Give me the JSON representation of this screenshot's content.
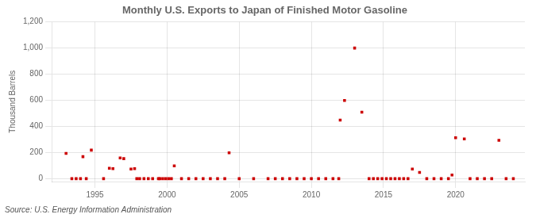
{
  "chart_data": {
    "type": "scatter",
    "title": "Monthly U.S. Exports to Japan of Finished Motor Gasoline",
    "y_label": "Thousand Barrels",
    "annotations": [
      "Source: U.S. Energy Information Administration"
    ],
    "color": "#cc0000",
    "marker": "square",
    "grid": true,
    "xlim": [
      1992.0,
      2024.8
    ],
    "xticks": [
      1995,
      2000,
      2005,
      2010,
      2015,
      2020
    ],
    "ylim": [
      -20,
      1200
    ],
    "yticks": [
      0,
      200,
      400,
      600,
      800,
      {
        "value": 1000,
        "label": "1,000"
      },
      {
        "value": 1200,
        "label": "1,200"
      }
    ],
    "x": [
      1993.0,
      1994.17,
      1994.75,
      1996.0,
      1996.25,
      1996.75,
      1997.0,
      1997.5,
      1997.75,
      1993.4,
      1993.7,
      1994.0,
      1994.4,
      1995.6,
      1997.9,
      1998.1,
      1998.4,
      1998.7,
      1999.0,
      1999.4,
      1999.5,
      1999.7,
      1999.9,
      2000.1,
      2000.3,
      2000.5,
      2001.0,
      2001.5,
      2002.0,
      2002.5,
      2003.0,
      2003.5,
      2004.0,
      2004.3,
      2005.0,
      2006.0,
      2007.0,
      2007.5,
      2008.0,
      2008.5,
      2009.0,
      2009.5,
      2010.0,
      2010.5,
      2011.0,
      2011.5,
      2011.9,
      2012.0,
      2012.3,
      2013.0,
      2013.5,
      2014.0,
      2014.3,
      2014.6,
      2014.9,
      2015.2,
      2015.5,
      2015.8,
      2016.1,
      2016.4,
      2016.7,
      2017.0,
      2017.5,
      2018.0,
      2018.5,
      2019.0,
      2019.5,
      2019.75,
      2020.0,
      2020.6,
      2021.0,
      2021.5,
      2022.0,
      2022.5,
      2023.0,
      2023.5,
      2024.0
    ],
    "values": [
      195,
      170,
      220,
      82,
      78,
      160,
      155,
      75,
      78,
      2,
      2,
      2,
      2,
      2,
      2,
      2,
      2,
      2,
      2,
      2,
      2,
      2,
      2,
      2,
      2,
      100,
      2,
      2,
      2,
      2,
      2,
      2,
      2,
      200,
      2,
      2,
      2,
      2,
      2,
      2,
      2,
      2,
      2,
      2,
      2,
      2,
      2,
      450,
      600,
      1000,
      510,
      2,
      2,
      2,
      2,
      2,
      2,
      2,
      2,
      2,
      2,
      75,
      50,
      2,
      2,
      2,
      2,
      30,
      315,
      305,
      2,
      2,
      2,
      2,
      295,
      2,
      2
    ]
  }
}
